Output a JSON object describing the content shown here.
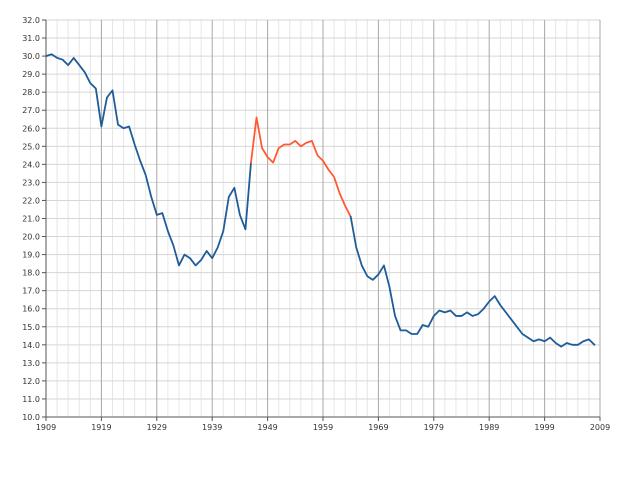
{
  "chart_data": {
    "type": "line",
    "title": "",
    "xlabel": "",
    "ylabel": "",
    "xlim": [
      1909,
      2009
    ],
    "ylim": [
      10,
      32
    ],
    "grid": true,
    "x_major_ticks": [
      1909,
      1919,
      1929,
      1939,
      1949,
      1959,
      1969,
      1979,
      1989,
      1999,
      2009
    ],
    "y_ticks": [
      "10.0",
      "11.0",
      "12.0",
      "13.0",
      "14.0",
      "15.0",
      "16.0",
      "17.0",
      "18.0",
      "19.0",
      "20.0",
      "21.0",
      "22.0",
      "23.0",
      "24.0",
      "25.0",
      "26.0",
      "27.0",
      "28.0",
      "29.0",
      "30.0",
      "31.0",
      "32.0"
    ],
    "series": [
      {
        "color": "#1f5c99",
        "points": [
          [
            1909,
            30.0
          ],
          [
            1910,
            30.1
          ],
          [
            1911,
            29.9
          ],
          [
            1912,
            29.8
          ],
          [
            1913,
            29.5
          ],
          [
            1914,
            29.9
          ],
          [
            1915,
            29.5
          ],
          [
            1916,
            29.1
          ],
          [
            1917,
            28.5
          ],
          [
            1918,
            28.2
          ],
          [
            1919,
            26.1
          ],
          [
            1920,
            27.7
          ],
          [
            1921,
            28.1
          ],
          [
            1922,
            26.2
          ],
          [
            1923,
            26.0
          ],
          [
            1924,
            26.1
          ],
          [
            1925,
            25.1
          ],
          [
            1926,
            24.2
          ],
          [
            1927,
            23.4
          ],
          [
            1928,
            22.2
          ],
          [
            1929,
            21.2
          ],
          [
            1930,
            21.3
          ],
          [
            1931,
            20.3
          ],
          [
            1932,
            19.5
          ],
          [
            1933,
            18.4
          ],
          [
            1934,
            19.0
          ],
          [
            1935,
            18.8
          ],
          [
            1936,
            18.4
          ],
          [
            1937,
            18.7
          ],
          [
            1938,
            19.2
          ],
          [
            1939,
            18.8
          ],
          [
            1940,
            19.4
          ],
          [
            1941,
            20.3
          ],
          [
            1942,
            22.2
          ],
          [
            1943,
            22.7
          ],
          [
            1944,
            21.2
          ],
          [
            1945,
            20.4
          ],
          [
            1946,
            24.1
          ]
        ]
      },
      {
        "color": "#ff5a33",
        "points": [
          [
            1946,
            24.1
          ],
          [
            1947,
            26.6
          ],
          [
            1948,
            24.9
          ],
          [
            1949,
            24.4
          ],
          [
            1950,
            24.1
          ],
          [
            1951,
            24.9
          ],
          [
            1952,
            25.1
          ],
          [
            1953,
            25.1
          ],
          [
            1954,
            25.3
          ],
          [
            1955,
            25.0
          ],
          [
            1956,
            25.2
          ],
          [
            1957,
            25.3
          ],
          [
            1958,
            24.5
          ],
          [
            1959,
            24.2
          ],
          [
            1960,
            23.7
          ],
          [
            1961,
            23.3
          ],
          [
            1962,
            22.4
          ],
          [
            1963,
            21.7
          ],
          [
            1964,
            21.1
          ]
        ]
      },
      {
        "color": "#1f5c99",
        "points": [
          [
            1964,
            21.1
          ],
          [
            1965,
            19.4
          ],
          [
            1966,
            18.4
          ],
          [
            1967,
            17.8
          ],
          [
            1968,
            17.6
          ],
          [
            1969,
            17.9
          ],
          [
            1970,
            18.4
          ],
          [
            1971,
            17.2
          ],
          [
            1972,
            15.6
          ],
          [
            1973,
            14.8
          ],
          [
            1974,
            14.8
          ],
          [
            1975,
            14.6
          ],
          [
            1976,
            14.6
          ],
          [
            1977,
            15.1
          ],
          [
            1978,
            15.0
          ],
          [
            1979,
            15.6
          ],
          [
            1980,
            15.9
          ],
          [
            1981,
            15.8
          ],
          [
            1982,
            15.9
          ],
          [
            1983,
            15.6
          ],
          [
            1984,
            15.6
          ],
          [
            1985,
            15.8
          ],
          [
            1986,
            15.6
          ],
          [
            1987,
            15.7
          ],
          [
            1988,
            16.0
          ],
          [
            1989,
            16.4
          ],
          [
            1990,
            16.7
          ],
          [
            1991,
            16.2
          ],
          [
            1992,
            15.8
          ],
          [
            1993,
            15.4
          ],
          [
            1994,
            15.0
          ],
          [
            1995,
            14.6
          ],
          [
            1996,
            14.4
          ],
          [
            1997,
            14.2
          ],
          [
            1998,
            14.3
          ],
          [
            1999,
            14.2
          ],
          [
            2000,
            14.4
          ],
          [
            2001,
            14.1
          ],
          [
            2002,
            13.9
          ],
          [
            2003,
            14.1
          ],
          [
            2004,
            14.0
          ],
          [
            2005,
            14.0
          ],
          [
            2006,
            14.2
          ],
          [
            2007,
            14.3
          ],
          [
            2008,
            14.0
          ]
        ]
      }
    ]
  }
}
